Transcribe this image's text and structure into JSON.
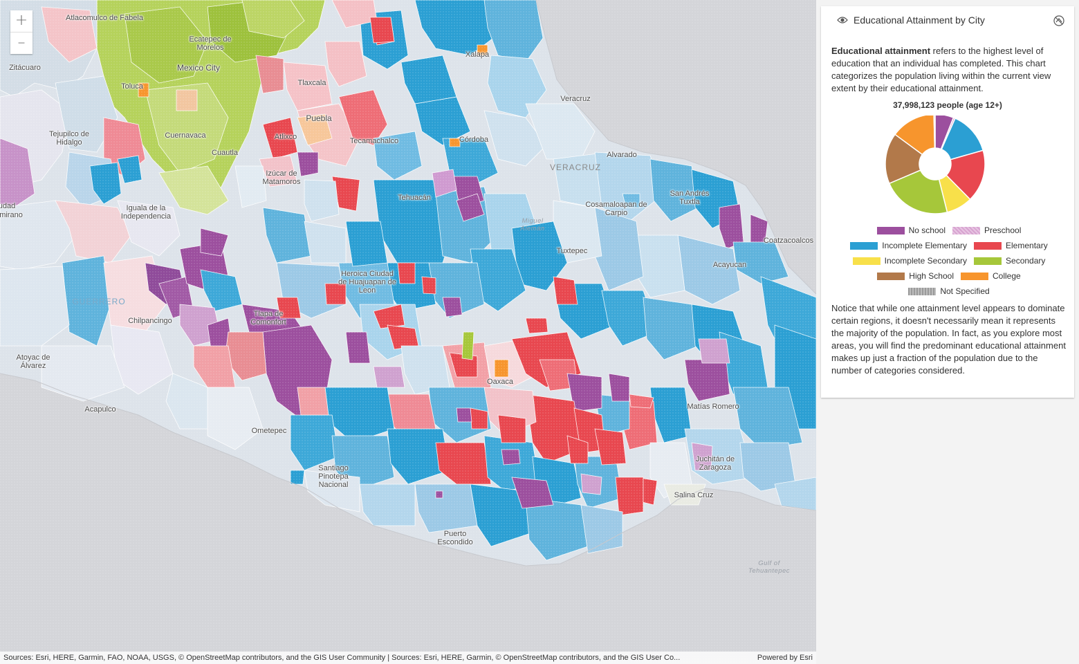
{
  "panel": {
    "title": "Educational Attainment by City",
    "desc_bold": "Educational attainment",
    "desc_rest": " refers to the highest level of education that an individual has completed. This chart categorizes the population living within the current view extent by their educational attainment.",
    "total": "37,998,123 people (age 12+)",
    "note": "Notice that while one attainment level appears to dominate certain regions, it doesn't necessarily mean it represents the majority of the population. In fact, as you explore most areas, you will find the predominant educational attainment makes up just a fraction of the population due to the number of categories considered."
  },
  "chart_data": {
    "type": "pie",
    "categories": [
      "No school",
      "Preschool",
      "Incomplete Elementary",
      "Elementary",
      "Incomplete Secondary",
      "Secondary",
      "High School",
      "College",
      "Not Specified"
    ],
    "values": [
      6.0,
      0.6,
      14.0,
      17.0,
      8.5,
      22.5,
      16.5,
      14.5,
      0.4
    ],
    "colors": [
      "#9c4f9e",
      "#d7a3d0",
      "#2b9fd3",
      "#e8474f",
      "#f8e04a",
      "#a6c73a",
      "#b2794a",
      "#f7952d",
      "#a3a3a3"
    ],
    "hole": true
  },
  "legend": {
    "rows": [
      [
        {
          "label": "No school",
          "color": "#9c4f9e"
        },
        {
          "label": "Preschool",
          "color": "#d7a3d0"
        }
      ],
      [
        {
          "label": "Incomplete Elementary",
          "color": "#2b9fd3"
        },
        {
          "label": "Elementary",
          "color": "#e8474f"
        }
      ],
      [
        {
          "label": "Incomplete Secondary",
          "color": "#f8e04a"
        },
        {
          "label": "Secondary",
          "color": "#a6c73a"
        }
      ],
      [
        {
          "label": "High School",
          "color": "#b2794a"
        },
        {
          "label": "College",
          "color": "#f7952d"
        }
      ],
      [
        {
          "label": "Not Specified",
          "color": "#a3a3a3"
        }
      ]
    ]
  },
  "zoom": {
    "in": "+",
    "out": "–"
  },
  "attribution": {
    "sources": "Sources: Esri, HERE, Garmin, FAO, NOAA, USGS, © OpenStreetMap contributors, and the GIS User Community | Sources: Esri, HERE, Garmin, © OpenStreetMap contributors, and the GIS User Co...",
    "powered": "Powered by Esri"
  },
  "places": [
    {
      "name": "Atlacomulco de Fabela",
      "type": "city"
    },
    {
      "name": "Ecatepec de Morelos",
      "type": "city"
    },
    {
      "name": "Zitácuaro",
      "type": "city"
    },
    {
      "name": "Mexico City",
      "type": "city"
    },
    {
      "name": "Toluca",
      "type": "city"
    },
    {
      "name": "Tlaxcala",
      "type": "city"
    },
    {
      "name": "Xalapa",
      "type": "city"
    },
    {
      "name": "Veracruz",
      "type": "city"
    },
    {
      "name": "Puebla",
      "type": "city"
    },
    {
      "name": "Tejupilco de Hidalgo",
      "type": "city"
    },
    {
      "name": "Cuernavaca",
      "type": "city"
    },
    {
      "name": "Atlixco",
      "type": "city"
    },
    {
      "name": "Tecamachalco",
      "type": "city"
    },
    {
      "name": "Córdoba",
      "type": "city"
    },
    {
      "name": "Cuautla",
      "type": "city"
    },
    {
      "name": "Alvarado",
      "type": "city"
    },
    {
      "name": "Izúcar de Matamoros",
      "type": "city"
    },
    {
      "name": "VERACRUZ",
      "type": "state"
    },
    {
      "name": "Tehuacán",
      "type": "city"
    },
    {
      "name": "San Andrés Tuxtla",
      "type": "city"
    },
    {
      "name": "Iguala de la Independencia",
      "type": "city"
    },
    {
      "name": "Cosamaloapan de Carpio",
      "type": "city"
    },
    {
      "name": "Coatzacoalcos",
      "type": "city"
    },
    {
      "name": "Tuxtepec",
      "type": "city"
    },
    {
      "name": "Acayucan",
      "type": "city"
    },
    {
      "name": "Heroica Ciudad de Huajuapan de Leon",
      "type": "city"
    },
    {
      "name": "GUERRERO",
      "type": "state"
    },
    {
      "name": "Chilpancingo",
      "type": "city"
    },
    {
      "name": "Tlapa de Comonfort",
      "type": "city"
    },
    {
      "name": "Atoyac de Álvarez",
      "type": "city"
    },
    {
      "name": "Oaxaca",
      "type": "city"
    },
    {
      "name": "Acapulco",
      "type": "city"
    },
    {
      "name": "Matías Romero",
      "type": "city"
    },
    {
      "name": "Ometepec",
      "type": "city"
    },
    {
      "name": "Juchitán de Zaragoza",
      "type": "city"
    },
    {
      "name": "Santiago Pinotepa Nacional",
      "type": "city"
    },
    {
      "name": "Salina Cruz",
      "type": "city"
    },
    {
      "name": "Puerto Escondido",
      "type": "city"
    },
    {
      "name": "Gulf of Tehuantepec",
      "type": "water"
    },
    {
      "name": "udad",
      "type": "city"
    },
    {
      "name": "mirano",
      "type": "city"
    },
    {
      "name": "Miguel Alemán",
      "type": "water"
    }
  ]
}
